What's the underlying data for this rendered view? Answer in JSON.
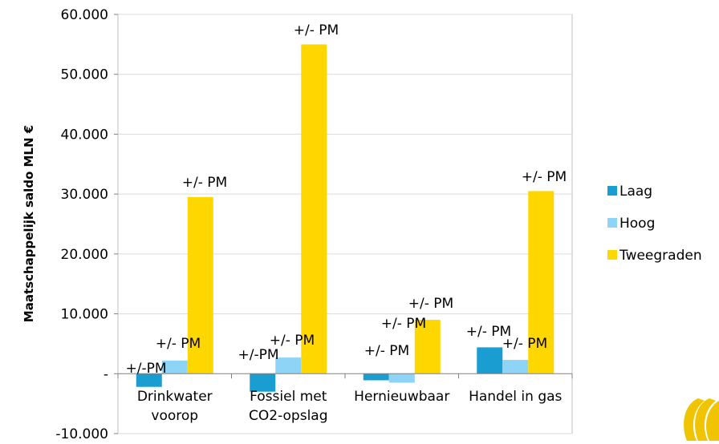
{
  "chart_data": {
    "type": "bar",
    "ylabel": "Maatschappelijk saldo MLN €",
    "xlabel": "",
    "title": "",
    "ylim": [
      -10000,
      60000
    ],
    "y_ticks": [
      {
        "value": 60000,
        "label": "60.000"
      },
      {
        "value": 50000,
        "label": "50.000"
      },
      {
        "value": 40000,
        "label": "40.000"
      },
      {
        "value": 30000,
        "label": "30.000"
      },
      {
        "value": 20000,
        "label": "20.000"
      },
      {
        "value": 10000,
        "label": "10.000"
      },
      {
        "value": 0,
        "label": "-"
      },
      {
        "value": -10000,
        "label": "-10.000"
      }
    ],
    "categories": [
      [
        "Drinkwater",
        "voorop"
      ],
      [
        "Fossiel met",
        "CO2-opslag"
      ],
      [
        "Hernieuwbaar"
      ],
      [
        "Handel in gas"
      ]
    ],
    "series": [
      {
        "name": "Laag",
        "color": "#1a9dd0",
        "values": [
          -2200,
          -3000,
          -1100,
          4400
        ],
        "labels": [
          "+/-PM",
          "+/-PM",
          "+/- PM",
          "+/- PM"
        ]
      },
      {
        "name": "Hoog",
        "color": "#8dd4f6",
        "values": [
          2200,
          2700,
          -1500,
          2300
        ],
        "labels": [
          "+/- PM",
          "+/- PM",
          "+/- PM",
          "+/- PM"
        ]
      },
      {
        "name": "Tweegraden",
        "color": "#ffd700",
        "values": [
          29500,
          55000,
          9000,
          30500
        ],
        "labels": [
          "+/- PM",
          "+/- PM",
          "+/- PM",
          "+/- PM"
        ]
      }
    ],
    "grid": true,
    "legend_position": "right"
  }
}
